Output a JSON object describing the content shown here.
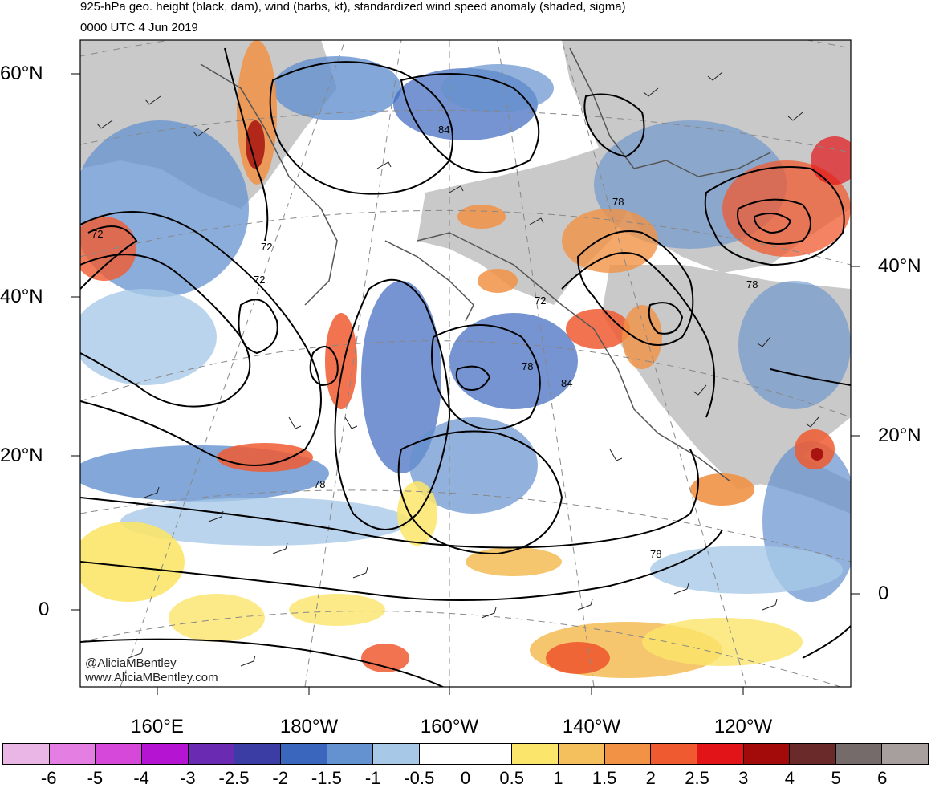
{
  "header": {
    "title": "925-hPa geo. height (black, dam), wind (barbs, kt), standardized wind speed anomaly (shaded, sigma)",
    "time": "0000 UTC 4 Jun 2019"
  },
  "axes": {
    "left_lat_labels": [
      "60°N",
      "40°N",
      "20°N",
      "0"
    ],
    "right_lat_labels": [
      "40°N",
      "20°N",
      "0"
    ],
    "lon_labels": [
      "160°E",
      "180°W",
      "160°W",
      "140°W",
      "120°W"
    ]
  },
  "contour_labels": [
    "84",
    "78",
    "72",
    "72",
    "72",
    "72",
    "78",
    "78",
    "84",
    "78",
    "78"
  ],
  "watermark": {
    "handle": "@AliciaMBentley",
    "site": "www.AliciaMBentley.com"
  },
  "colorbar": {
    "colors": [
      "#e9b6e6",
      "#e57ee3",
      "#d648d9",
      "#b514d2",
      "#6a2ab2",
      "#3b3ca4",
      "#3a67bd",
      "#6491cf",
      "#a7c9e7",
      "#ffffff",
      "#ffffff",
      "#fbe56a",
      "#f4c05d",
      "#f19245",
      "#f05a30",
      "#e31417",
      "#a30b0b",
      "#6b2a2a",
      "#766b6b",
      "#a79e9e"
    ],
    "labels": [
      "-6",
      "-5",
      "-4",
      "-3",
      "-2.5",
      "-2",
      "-1.5",
      "-1",
      "-0.5",
      "0",
      "0.5",
      "1",
      "1.5",
      "2",
      "2.5",
      "3",
      "4",
      "5",
      "6"
    ]
  },
  "palette": {
    "land": "#c9c9c9",
    "coast": "#555555",
    "contour": "#000000",
    "grid": "#888888"
  }
}
